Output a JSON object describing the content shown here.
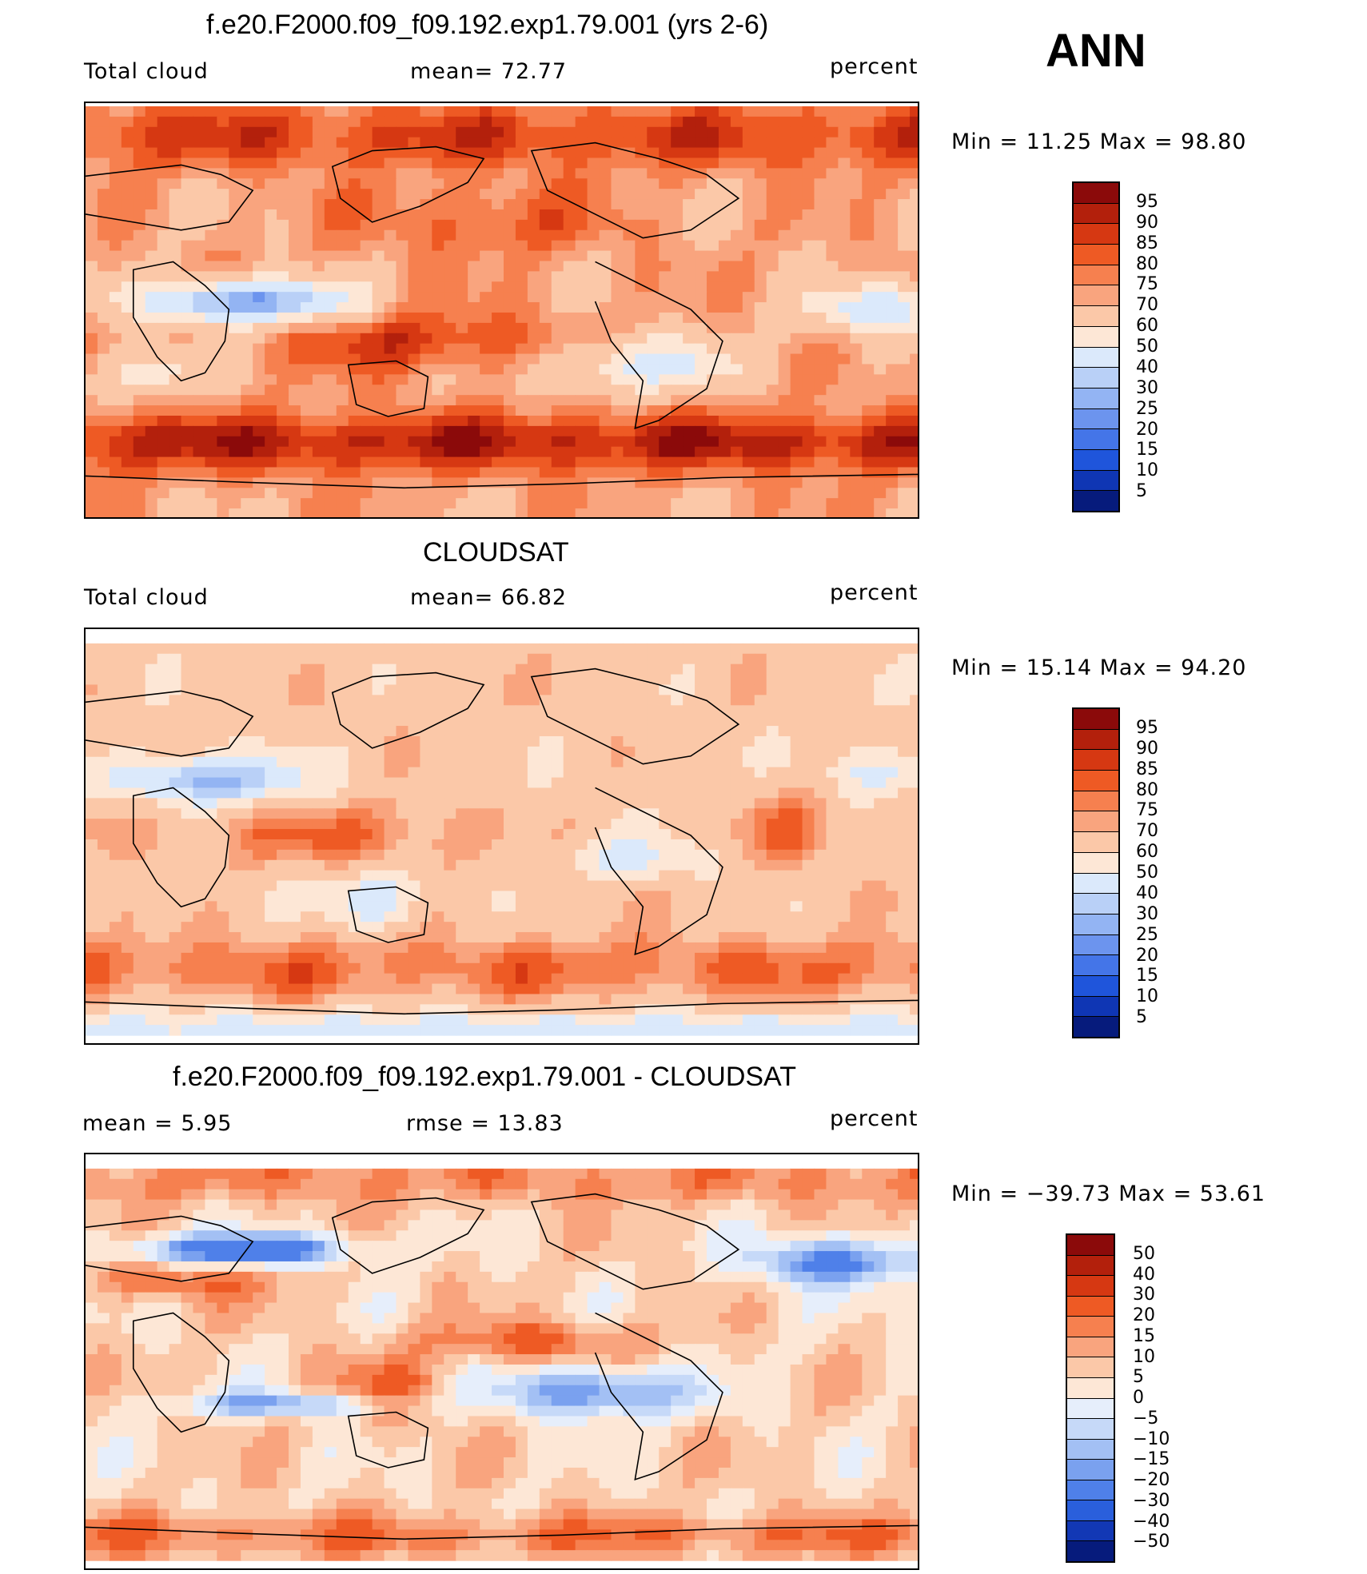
{
  "season": "ANN",
  "panels": [
    {
      "title": "f.e20.F2000.f09_f09.192.exp1.79.001 (yrs 2-6)",
      "left_label": "Total cloud",
      "center_label": "mean=   72.77",
      "units": "percent",
      "minmax": "Min =   11.25 Max =   98.80",
      "colorbar": {
        "labels": [
          "95",
          "90",
          "85",
          "80",
          "75",
          "70",
          "60",
          "50",
          "40",
          "30",
          "25",
          "20",
          "15",
          "10",
          "5"
        ],
        "colors": [
          "#8b0a0a",
          "#b3200c",
          "#d63812",
          "#ee5a24",
          "#f6804f",
          "#f9a47e",
          "#fbc8a8",
          "#fde7d6",
          "#dbe9fb",
          "#b9d0f7",
          "#93b4f3",
          "#6c94ee",
          "#4475e8",
          "#1f55db",
          "#0f36b4",
          "#061b7c"
        ]
      },
      "field": "model"
    },
    {
      "title": "CLOUDSAT",
      "left_label": "Total cloud",
      "center_label": "mean=   66.82",
      "units": "percent",
      "minmax": "Min =   15.14 Max =   94.20",
      "colorbar": {
        "labels": [
          "95",
          "90",
          "85",
          "80",
          "75",
          "70",
          "60",
          "50",
          "40",
          "30",
          "25",
          "20",
          "15",
          "10",
          "5"
        ],
        "colors": [
          "#8b0a0a",
          "#b3200c",
          "#d63812",
          "#ee5a24",
          "#f6804f",
          "#f9a47e",
          "#fbc8a8",
          "#fde7d6",
          "#dbe9fb",
          "#b9d0f7",
          "#93b4f3",
          "#6c94ee",
          "#4475e8",
          "#1f55db",
          "#0f36b4",
          "#061b7c"
        ]
      },
      "field": "obs"
    },
    {
      "title": "f.e20.F2000.f09_f09.192.exp1.79.001 - CLOUDSAT",
      "left_label": "mean =     5.95",
      "center_label": "rmse =    13.83",
      "units": "percent",
      "minmax": "Min = −39.73 Max =   53.61",
      "colorbar": {
        "labels": [
          "50",
          "40",
          "30",
          "20",
          "15",
          "10",
          "5",
          "0",
          "−5",
          "−10",
          "−15",
          "−20",
          "−30",
          "−40",
          "−50"
        ],
        "colors": [
          "#8b0a0a",
          "#b3200c",
          "#d63812",
          "#ee5a24",
          "#f6804f",
          "#f9a47e",
          "#fbc8a8",
          "#fde7d6",
          "#e6eefb",
          "#c6d9f8",
          "#a3c0f4",
          "#7aa1ef",
          "#4f80e9",
          "#2a5fdc",
          "#1238b5",
          "#061b7c"
        ]
      },
      "field": "diff"
    }
  ]
}
